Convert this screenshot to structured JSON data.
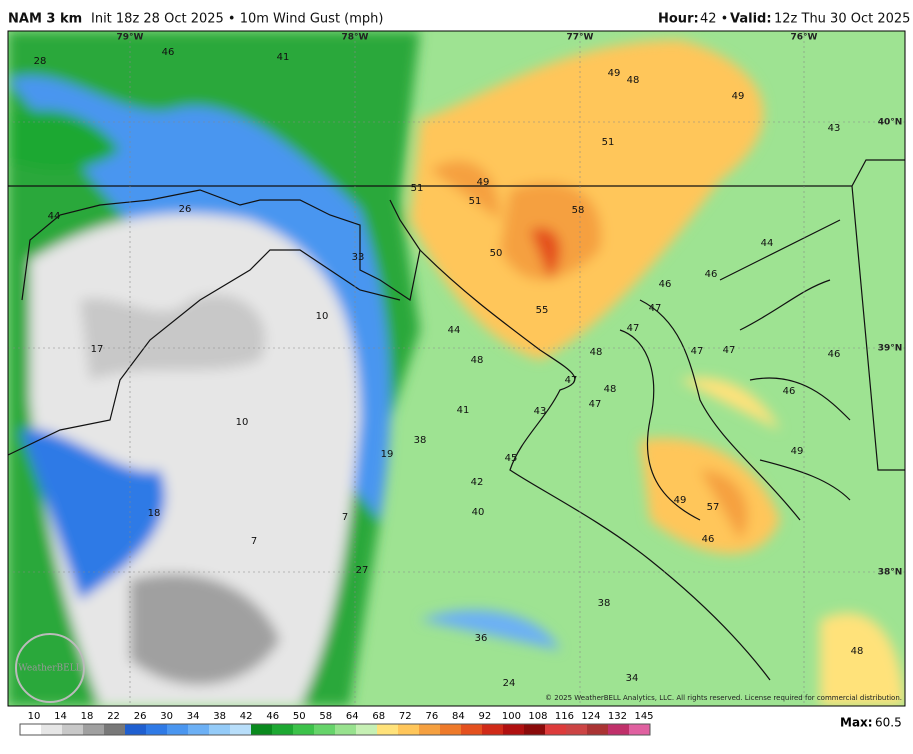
{
  "header": {
    "model": "NAM 3 km",
    "run": "Init 18z 28 Oct 2025 • 10m Wind Gust (mph)",
    "hour_label": "Hour:",
    "hour": "42 •",
    "valid_label": "Valid:",
    "valid": "12z Thu 30 Oct 2025"
  },
  "map": {
    "lon_labels": [
      "79°W",
      "78°W",
      "77°W",
      "76°W"
    ],
    "lat_labels": [
      "40°N",
      "39°N",
      "38°N"
    ],
    "values": [
      28,
      46,
      41,
      49,
      48,
      49,
      43,
      51,
      49,
      51,
      51,
      58,
      44,
      26,
      44,
      33,
      50,
      46,
      46,
      47,
      55,
      10,
      44,
      47,
      17,
      48,
      47,
      47,
      46,
      48,
      47,
      48,
      46,
      47,
      41,
      43,
      10,
      38,
      19,
      49,
      45,
      42,
      49,
      57,
      40,
      18,
      7,
      7,
      46,
      27,
      38,
      36,
      48,
      24,
      34
    ],
    "logo": "WeatherBELL",
    "copyright": "© 2025 WeatherBELL Analytics, LLC. All rights reserved. License required for commercial distribution."
  },
  "colorbar": {
    "ticks": [
      10,
      14,
      18,
      22,
      26,
      30,
      34,
      38,
      42,
      46,
      50,
      58,
      64,
      68,
      72,
      76,
      84,
      92,
      100,
      108,
      116,
      124,
      132,
      145
    ],
    "colors": [
      "#ffffff",
      "#e6e6e6",
      "#c8c8c8",
      "#a0a0a0",
      "#787878",
      "#1f5fd0",
      "#2f7ae6",
      "#4a96f0",
      "#6cb0f5",
      "#94cbf8",
      "#b8defa",
      "#0a8a1e",
      "#1da832",
      "#3cc24a",
      "#66d46a",
      "#98e28e",
      "#c6f0b4",
      "#ffe27a",
      "#ffc65a",
      "#f5a040",
      "#ee7a2a",
      "#e4501e",
      "#d02a18",
      "#b01010",
      "#8a0a0a",
      "#dd3b3b",
      "#c44",
      "#a33",
      "#c0306a",
      "#e060a0"
    ],
    "max_label": "Max:",
    "max": 60.5
  }
}
